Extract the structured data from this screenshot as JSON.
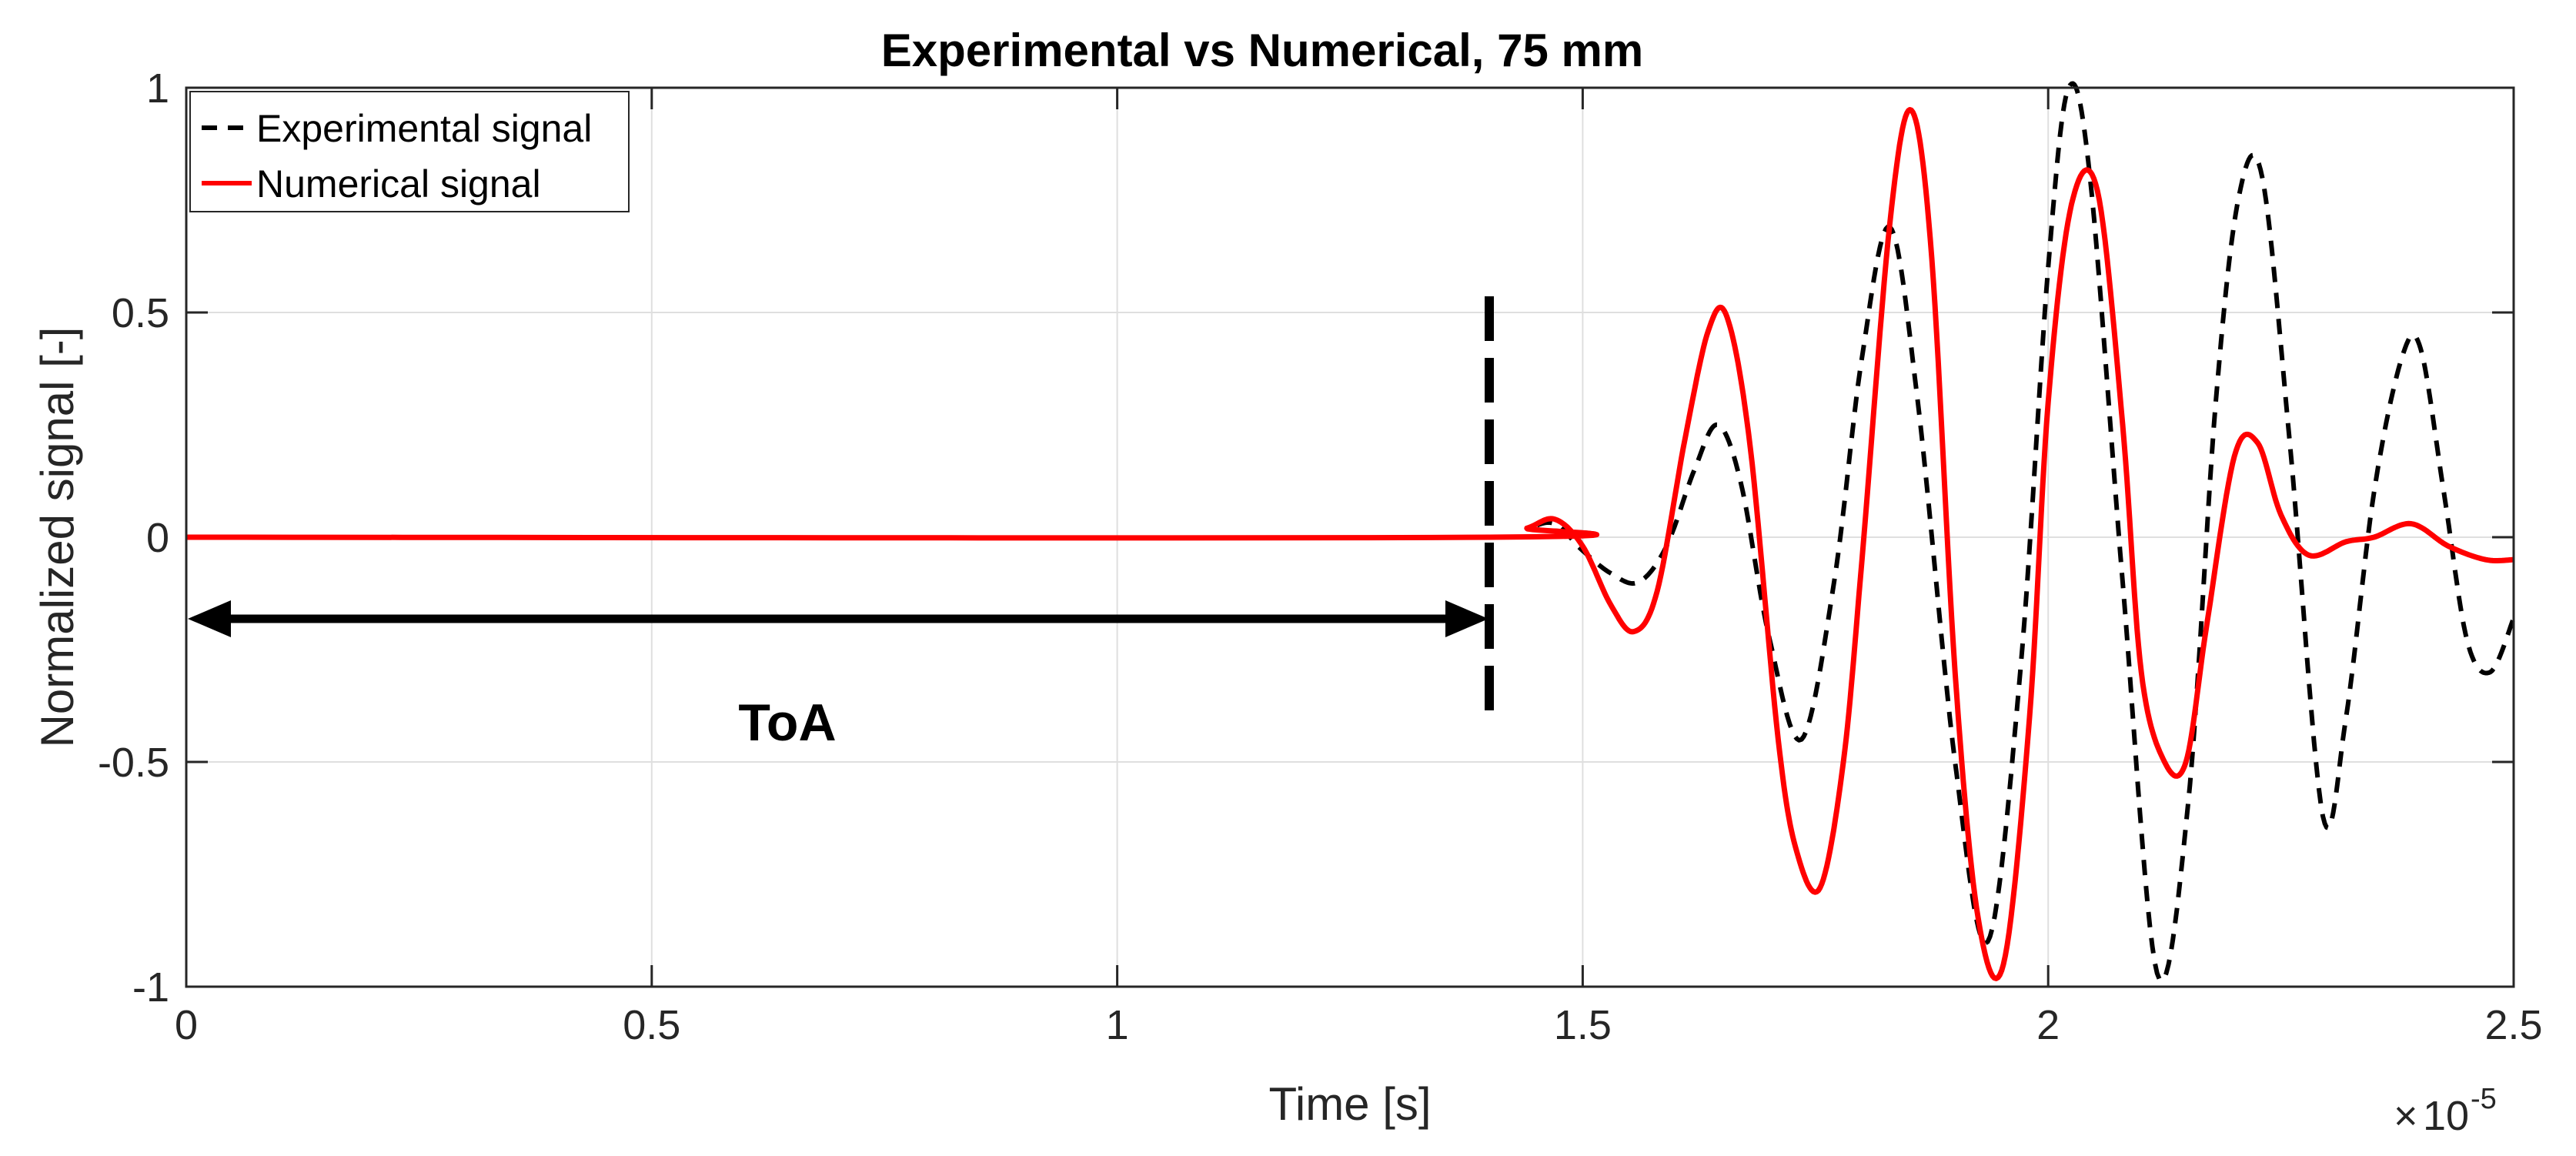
{
  "chart_data": {
    "type": "line",
    "title": "Experimental vs Numerical, 75 mm",
    "xlabel": "Time [s]",
    "ylabel": "Normalized signal [-]",
    "xlim": [
      0,
      2.5
    ],
    "ylim": [
      -1,
      1
    ],
    "x_scale_multiplier": "10",
    "x_scale_exponent": "-5",
    "x_scale_symbol": "×",
    "grid": true,
    "legend_position": "top-left",
    "xticks": [
      0,
      0.5,
      1,
      1.5,
      2,
      2.5
    ],
    "xtick_labels": [
      "0",
      "0.5",
      "1",
      "1.5",
      "2",
      "2.5"
    ],
    "yticks": [
      -1,
      -0.5,
      0,
      0.5,
      1
    ],
    "ytick_labels": [
      "-1",
      "-0.5",
      "0",
      "0.5",
      "1"
    ],
    "series": [
      {
        "name": "Experimental signal",
        "color": "#000000",
        "style": "dashed",
        "x": [
          0,
          1.4,
          1.44,
          1.47,
          1.5,
          1.53,
          1.56,
          1.59,
          1.62,
          1.645,
          1.67,
          1.7,
          1.735,
          1.77,
          1.8,
          1.83,
          1.86,
          1.9,
          1.935,
          1.97,
          2.0,
          2.022,
          2.045,
          2.08,
          2.117,
          2.15,
          2.18,
          2.205,
          2.23,
          2.26,
          2.295,
          2.32,
          2.35,
          2.38,
          2.4,
          2.425,
          2.45,
          2.475,
          2.5
        ],
        "y": [
          0,
          0,
          0.02,
          0.03,
          -0.03,
          -0.08,
          -0.1,
          -0.02,
          0.15,
          0.25,
          0.12,
          -0.22,
          -0.45,
          -0.1,
          0.4,
          0.69,
          0.3,
          -0.5,
          -0.9,
          -0.3,
          0.6,
          1.0,
          0.8,
          -0.1,
          -0.97,
          -0.6,
          0.3,
          0.76,
          0.8,
          0.2,
          -0.62,
          -0.4,
          0.1,
          0.4,
          0.42,
          0.1,
          -0.23,
          -0.3,
          -0.18
        ]
      },
      {
        "name": "Numerical signal",
        "color": "#ff0000",
        "style": "solid",
        "x": [
          0,
          1.4,
          1.44,
          1.47,
          1.5,
          1.53,
          1.555,
          1.58,
          1.61,
          1.635,
          1.655,
          1.68,
          1.71,
          1.73,
          1.755,
          1.78,
          1.8,
          1.83,
          1.853,
          1.875,
          1.9,
          1.925,
          1.952,
          1.98,
          2.0,
          2.025,
          2.053,
          2.08,
          2.1,
          2.125,
          2.148,
          2.17,
          2.2,
          2.225,
          2.25,
          2.28,
          2.32,
          2.35,
          2.39,
          2.43,
          2.47,
          2.5
        ],
        "y": [
          0,
          0,
          0.02,
          0.04,
          -0.02,
          -0.15,
          -0.21,
          -0.12,
          0.22,
          0.46,
          0.49,
          0.2,
          -0.45,
          -0.7,
          -0.78,
          -0.5,
          -0.05,
          0.7,
          0.95,
          0.62,
          -0.3,
          -0.85,
          -0.95,
          -0.4,
          0.3,
          0.74,
          0.77,
          0.25,
          -0.3,
          -0.5,
          -0.5,
          -0.2,
          0.18,
          0.21,
          0.05,
          -0.04,
          -0.01,
          0.0,
          0.03,
          -0.02,
          -0.05,
          -0.05
        ]
      }
    ],
    "annotations": [
      {
        "text": "ToA",
        "type": "double-arrow",
        "x_start": 0,
        "x_end": 1.4,
        "y": -0.19
      },
      {
        "type": "vertical-dashed-marker",
        "x": 1.4,
        "y_start": -0.39,
        "y_end": 0.53
      }
    ]
  }
}
